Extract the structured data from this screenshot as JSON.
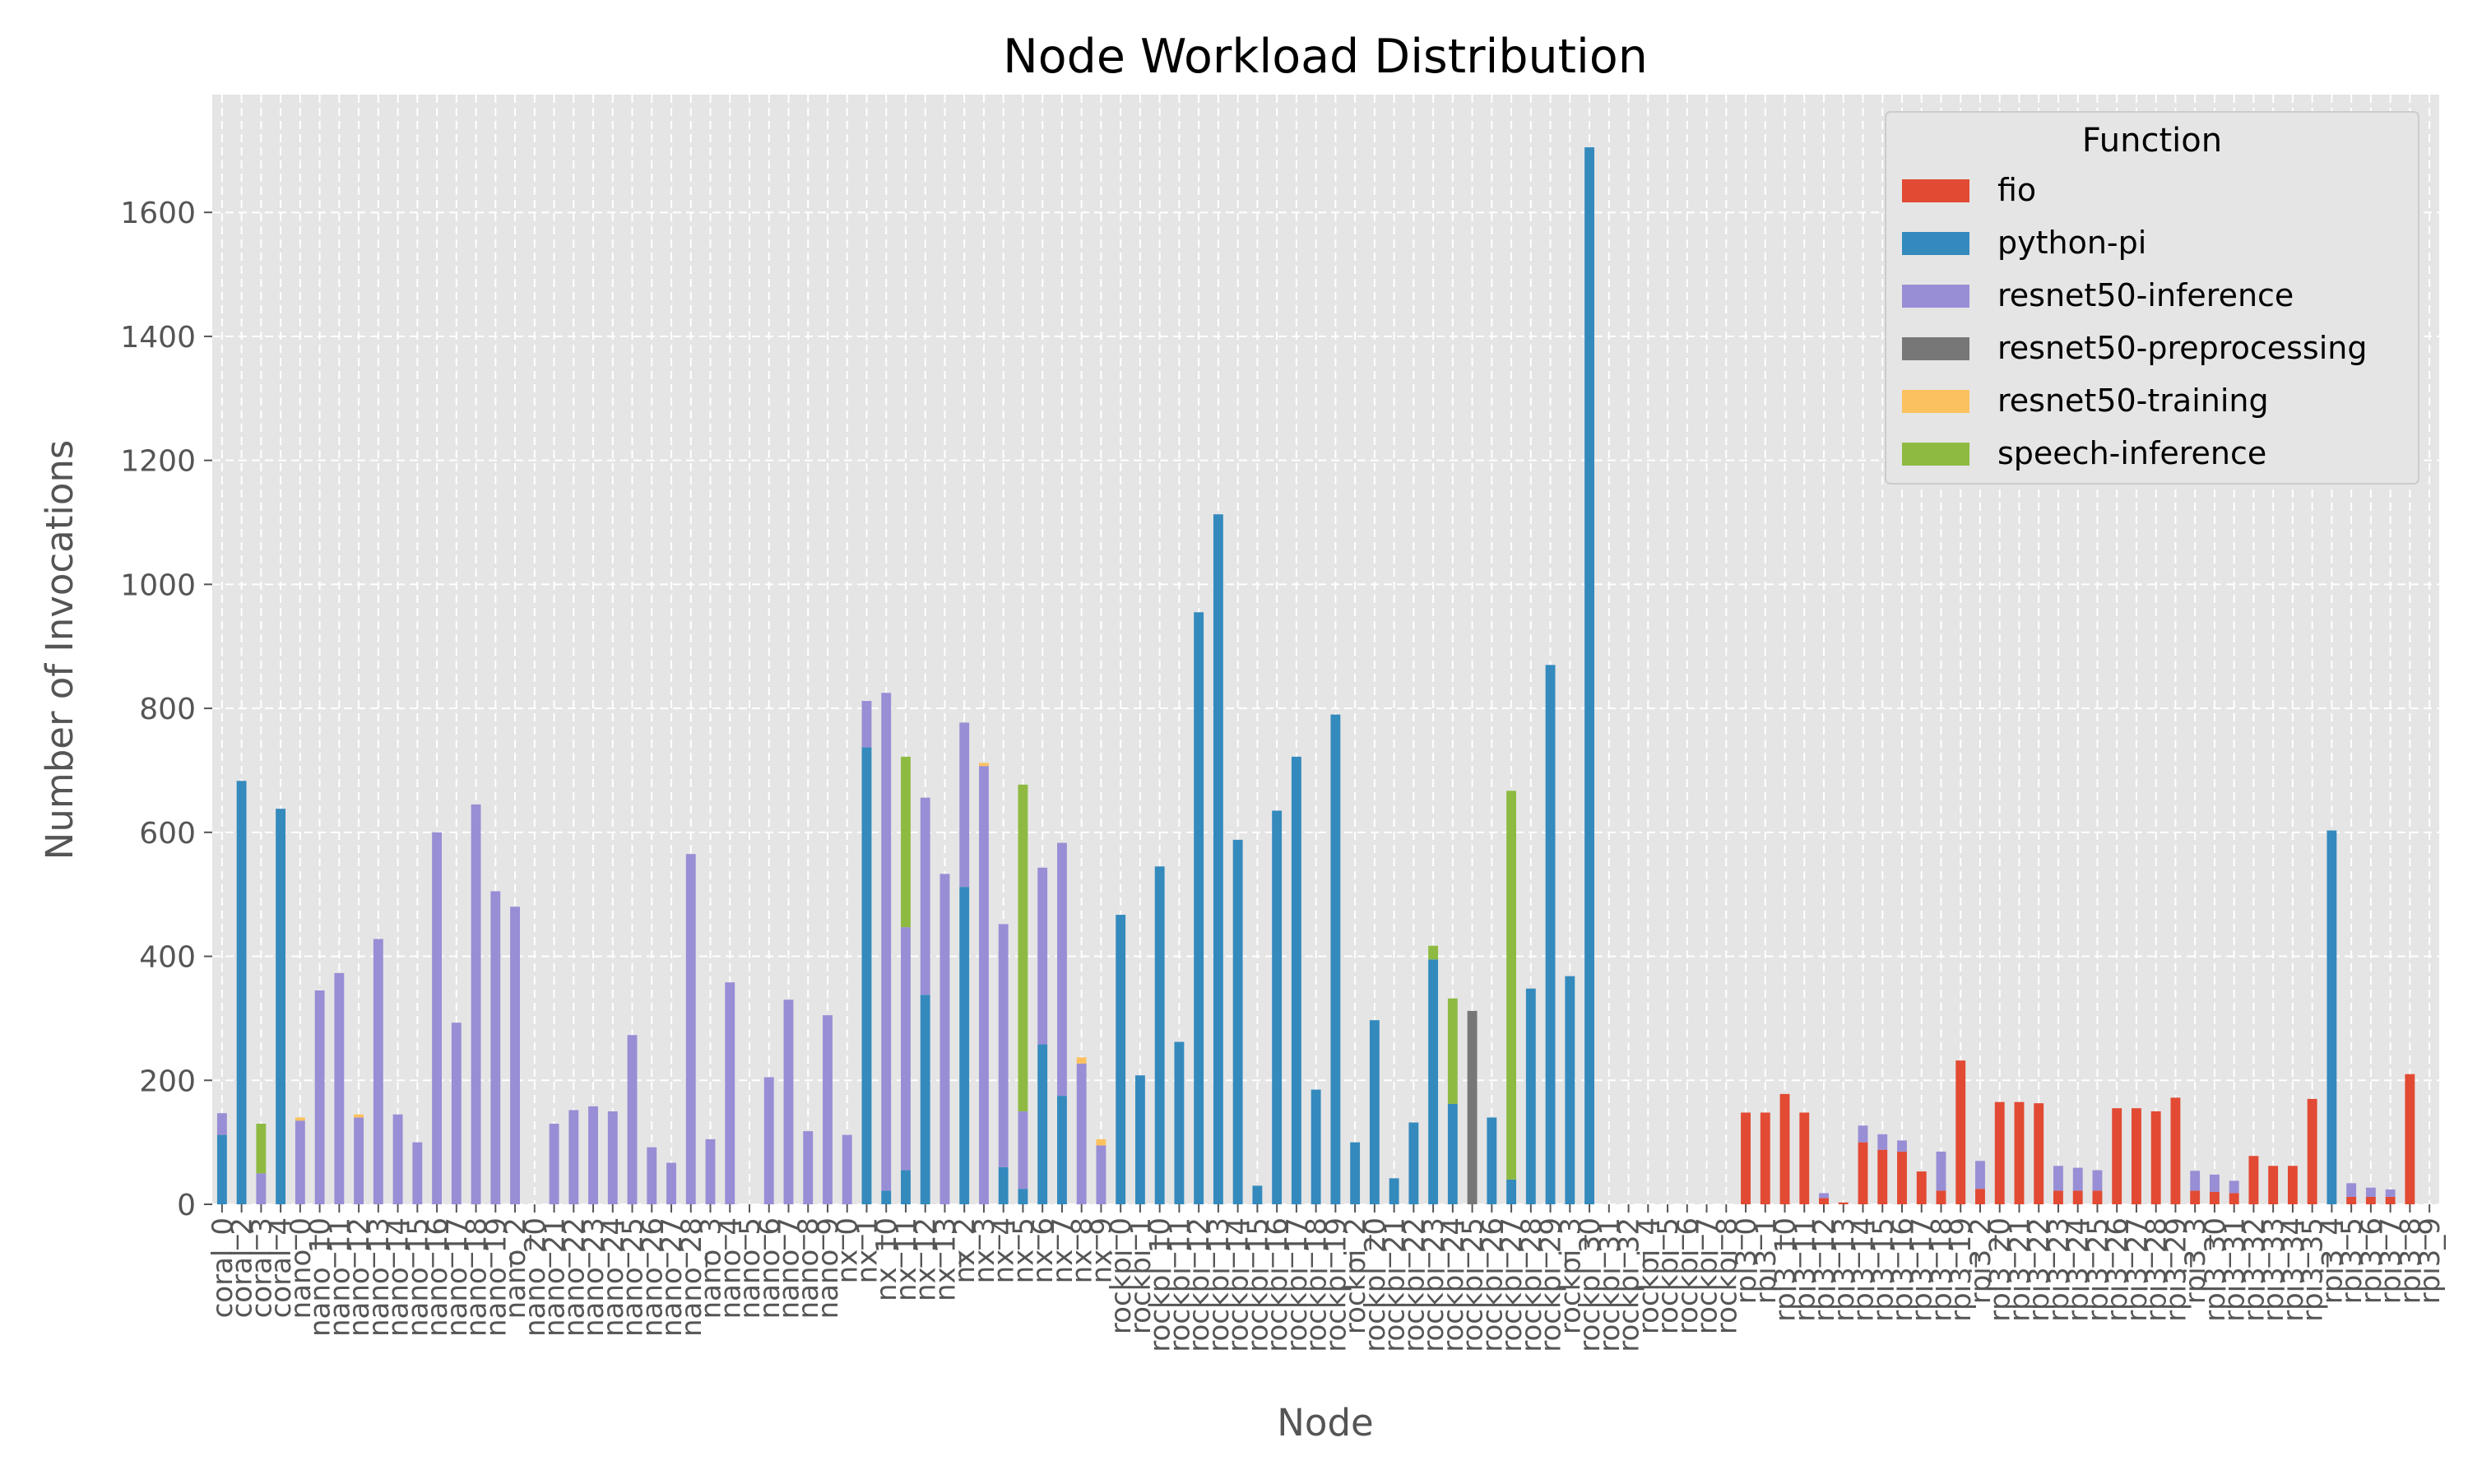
{
  "chart_data": {
    "type": "bar",
    "stacked": true,
    "title": "Node Workload Distribution",
    "xlabel": "Node",
    "ylabel": "Number of Invocations",
    "ylim": [
      0,
      1790
    ],
    "yticks": [
      0,
      200,
      400,
      600,
      800,
      1000,
      1200,
      1400,
      1600
    ],
    "grid": true,
    "legend": {
      "title": "Function",
      "placement": "top-right"
    },
    "categories": [
      "coral_0",
      "coral_2",
      "coral_3",
      "coral_4",
      "nano_0",
      "nano_10",
      "nano_11",
      "nano_12",
      "nano_13",
      "nano_14",
      "nano_15",
      "nano_16",
      "nano_17",
      "nano_18",
      "nano_19",
      "nano_2",
      "nano_20",
      "nano_21",
      "nano_22",
      "nano_23",
      "nano_24",
      "nano_25",
      "nano_26",
      "nano_27",
      "nano_28",
      "nano_3",
      "nano_4",
      "nano_5",
      "nano_6",
      "nano_7",
      "nano_8",
      "nano_9",
      "nx_0",
      "nx_1",
      "nx_10",
      "nx_11",
      "nx_12",
      "nx_13",
      "nx_2",
      "nx_3",
      "nx_4",
      "nx_5",
      "nx_6",
      "nx_7",
      "nx_8",
      "nx_9",
      "rockpi_0",
      "rockpi_1",
      "rockpi_10",
      "rockpi_11",
      "rockpi_12",
      "rockpi_13",
      "rockpi_14",
      "rockpi_15",
      "rockpi_16",
      "rockpi_17",
      "rockpi_18",
      "rockpi_19",
      "rockpi_2",
      "rockpi_20",
      "rockpi_21",
      "rockpi_22",
      "rockpi_23",
      "rockpi_24",
      "rockpi_25",
      "rockpi_26",
      "rockpi_27",
      "rockpi_28",
      "rockpi_29",
      "rockpi_3",
      "rockpi_30",
      "rockpi_31",
      "rockpi_32",
      "rockpi_4",
      "rockpi_5",
      "rockpi_6",
      "rockpi_7",
      "rockpi_8",
      "rpi3_0",
      "rpi3_1",
      "rpi3_10",
      "rpi3_11",
      "rpi3_12",
      "rpi3_13",
      "rpi3_14",
      "rpi3_15",
      "rpi3_16",
      "rpi3_17",
      "rpi3_18",
      "rpi3_19",
      "rpi3_2",
      "rpi3_20",
      "rpi3_21",
      "rpi3_22",
      "rpi3_23",
      "rpi3_24",
      "rpi3_25",
      "rpi3_26",
      "rpi3_27",
      "rpi3_28",
      "rpi3_29",
      "rpi3_3",
      "rpi3_30",
      "rpi3_31",
      "rpi3_32",
      "rpi3_33",
      "rpi3_34",
      "rpi3_35",
      "rpi3_4",
      "rpi3_5",
      "rpi3_6",
      "rpi3_7",
      "rpi3_8",
      "rpi3_9"
    ],
    "series": [
      {
        "name": "fio",
        "color": "#E24A33",
        "values": [
          0,
          0,
          0,
          0,
          0,
          0,
          0,
          0,
          0,
          0,
          0,
          0,
          0,
          0,
          0,
          0,
          0,
          0,
          0,
          0,
          0,
          0,
          0,
          0,
          0,
          0,
          0,
          0,
          0,
          0,
          0,
          0,
          0,
          0,
          0,
          0,
          0,
          0,
          0,
          0,
          0,
          0,
          0,
          0,
          0,
          0,
          0,
          0,
          0,
          0,
          0,
          0,
          0,
          0,
          0,
          0,
          0,
          0,
          0,
          0,
          0,
          0,
          0,
          0,
          0,
          0,
          0,
          0,
          0,
          0,
          0,
          0,
          0,
          0,
          0,
          0,
          0,
          0,
          148,
          148,
          178,
          148,
          10,
          3,
          100,
          88,
          85,
          53,
          22,
          232,
          25,
          165,
          165,
          163,
          22,
          22,
          22,
          155,
          155,
          150,
          172,
          22,
          20,
          18,
          78,
          62,
          62,
          170,
          0,
          12,
          12,
          12,
          210,
          0
        ]
      },
      {
        "name": "python-pi",
        "color": "#348ABD",
        "values": [
          112,
          683,
          0,
          638,
          0,
          0,
          0,
          0,
          0,
          0,
          0,
          0,
          0,
          0,
          0,
          0,
          0,
          0,
          0,
          0,
          0,
          0,
          0,
          0,
          0,
          0,
          0,
          0,
          0,
          0,
          0,
          0,
          0,
          737,
          22,
          55,
          338,
          0,
          512,
          0,
          60,
          25,
          258,
          175,
          0,
          0,
          467,
          208,
          545,
          262,
          955,
          1113,
          588,
          30,
          635,
          722,
          185,
          790,
          100,
          297,
          42,
          132,
          395,
          162,
          0,
          140,
          40,
          348,
          870,
          368,
          1705,
          0,
          0,
          0,
          0,
          0,
          0,
          0,
          0,
          0,
          0,
          0,
          0,
          0,
          0,
          0,
          0,
          0,
          0,
          0,
          0,
          0,
          0,
          0,
          0,
          0,
          0,
          0,
          0,
          0,
          0,
          0,
          0,
          0,
          0,
          0,
          0,
          0,
          603,
          0,
          0,
          0,
          0,
          0
        ]
      },
      {
        "name": "resnet50-inference",
        "color": "#988ED5",
        "values": [
          35,
          0,
          50,
          0,
          135,
          345,
          373,
          140,
          428,
          145,
          100,
          600,
          293,
          645,
          505,
          480,
          0,
          130,
          152,
          158,
          150,
          273,
          92,
          67,
          565,
          105,
          358,
          0,
          205,
          330,
          118,
          305,
          112,
          75,
          803,
          392,
          318,
          533,
          265,
          707,
          392,
          125,
          285,
          408,
          227,
          95,
          0,
          0,
          0,
          0,
          0,
          0,
          0,
          0,
          0,
          0,
          0,
          0,
          0,
          0,
          0,
          0,
          0,
          0,
          0,
          0,
          0,
          0,
          0,
          0,
          0,
          0,
          0,
          0,
          0,
          0,
          0,
          0,
          0,
          0,
          0,
          0,
          8,
          0,
          27,
          25,
          18,
          0,
          63,
          0,
          45,
          0,
          0,
          0,
          40,
          37,
          33,
          0,
          0,
          0,
          0,
          32,
          28,
          20,
          0,
          0,
          0,
          0,
          0,
          22,
          15,
          12,
          0,
          0
        ]
      },
      {
        "name": "resnet50-preprocessing",
        "color": "#777777",
        "values": [
          0,
          0,
          0,
          0,
          0,
          0,
          0,
          0,
          0,
          0,
          0,
          0,
          0,
          0,
          0,
          0,
          0,
          0,
          0,
          0,
          0,
          0,
          0,
          0,
          0,
          0,
          0,
          0,
          0,
          0,
          0,
          0,
          0,
          0,
          0,
          0,
          0,
          0,
          0,
          0,
          0,
          0,
          0,
          0,
          0,
          0,
          0,
          0,
          0,
          0,
          0,
          0,
          0,
          0,
          0,
          0,
          0,
          0,
          0,
          0,
          0,
          0,
          0,
          0,
          312,
          0,
          0,
          0,
          0,
          0,
          0,
          0,
          0,
          0,
          0,
          0,
          0,
          0,
          0,
          0,
          0,
          0,
          0,
          0,
          0,
          0,
          0,
          0,
          0,
          0,
          0,
          0,
          0,
          0,
          0,
          0,
          0,
          0,
          0,
          0,
          0,
          0,
          0,
          0,
          0,
          0,
          0,
          0,
          0,
          0,
          0,
          0,
          0,
          0
        ]
      },
      {
        "name": "resnet50-training",
        "color": "#FBC15E",
        "values": [
          0,
          0,
          0,
          0,
          5,
          0,
          0,
          5,
          0,
          0,
          0,
          0,
          0,
          0,
          0,
          0,
          0,
          0,
          0,
          0,
          0,
          0,
          0,
          0,
          0,
          0,
          0,
          0,
          0,
          0,
          0,
          0,
          0,
          0,
          0,
          0,
          0,
          0,
          0,
          5,
          0,
          0,
          0,
          0,
          10,
          10,
          0,
          0,
          0,
          0,
          0,
          0,
          0,
          0,
          0,
          0,
          0,
          0,
          0,
          0,
          0,
          0,
          0,
          0,
          0,
          0,
          0,
          0,
          0,
          0,
          0,
          0,
          0,
          0,
          0,
          0,
          0,
          0,
          0,
          0,
          0,
          0,
          0,
          0,
          0,
          0,
          0,
          0,
          0,
          0,
          0,
          0,
          0,
          0,
          0,
          0,
          0,
          0,
          0,
          0,
          0,
          0,
          0,
          0,
          0,
          0,
          0,
          0,
          0,
          0,
          0,
          0,
          0,
          0
        ]
      },
      {
        "name": "speech-inference",
        "color": "#8EBA42",
        "values": [
          0,
          0,
          80,
          0,
          0,
          0,
          0,
          0,
          0,
          0,
          0,
          0,
          0,
          0,
          0,
          0,
          0,
          0,
          0,
          0,
          0,
          0,
          0,
          0,
          0,
          0,
          0,
          0,
          0,
          0,
          0,
          0,
          0,
          0,
          0,
          275,
          0,
          0,
          0,
          0,
          0,
          527,
          0,
          0,
          0,
          0,
          0,
          0,
          0,
          0,
          0,
          0,
          0,
          0,
          0,
          0,
          0,
          0,
          0,
          0,
          0,
          0,
          22,
          170,
          0,
          0,
          627,
          0,
          0,
          0,
          0,
          0,
          0,
          0,
          0,
          0,
          0,
          0,
          0,
          0,
          0,
          0,
          0,
          0,
          0,
          0,
          0,
          0,
          0,
          0,
          0,
          0,
          0,
          0,
          0,
          0,
          0,
          0,
          0,
          0,
          0,
          0,
          0,
          0,
          0,
          0,
          0,
          0,
          0,
          0,
          0,
          0,
          0,
          0
        ]
      }
    ]
  }
}
